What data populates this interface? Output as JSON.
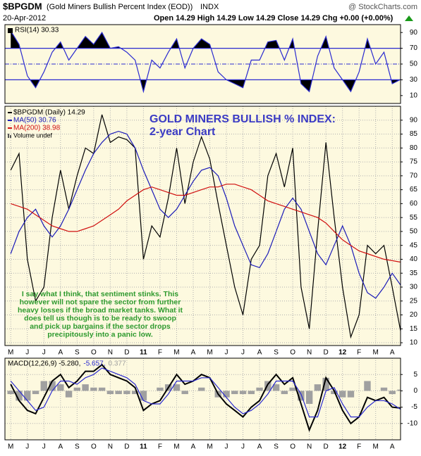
{
  "header": {
    "symbol": "$BPGDM",
    "description": "(Gold Miners Bullish Percent Index (EOD))",
    "exchange": "INDX",
    "source": "@ StockCharts.com",
    "date": "20-Apr-2012",
    "quote": "Open 14.29  High 14.29  Low 14.29  Close 14.29  Chg +0.00 (+0.00%)"
  },
  "chart_data": [
    {
      "type": "line",
      "xlim": [
        -0.35,
        23.5
      ],
      "ylim": [
        0,
        100
      ],
      "yticks": [
        10,
        30,
        50,
        70,
        90
      ],
      "grid": false,
      "thresholds": [
        30,
        70
      ],
      "midline": 50,
      "fill_color": "#000000",
      "x": [
        0,
        0.5,
        1,
        1.5,
        2,
        2.5,
        3,
        3.5,
        4,
        4.5,
        5,
        5.5,
        6,
        6.5,
        7,
        7.5,
        8,
        8.5,
        9,
        9.5,
        10,
        10.5,
        11,
        11.5,
        12,
        12.5,
        13,
        13.5,
        14,
        14.5,
        15,
        15.5,
        16,
        16.5,
        17,
        17.5,
        18,
        18.5,
        19,
        19.5,
        20,
        20.5,
        21,
        21.5,
        22,
        22.5,
        23,
        23.5
      ],
      "series": [
        {
          "name": "RSI(14) 30.33",
          "color": "#2a2ad0",
          "kind": "line",
          "values": [
            92,
            75,
            35,
            20,
            40,
            65,
            78,
            55,
            70,
            85,
            75,
            90,
            70,
            72,
            65,
            55,
            15,
            55,
            45,
            65,
            82,
            45,
            70,
            82,
            75,
            40,
            30,
            25,
            20,
            55,
            55,
            78,
            80,
            55,
            82,
            25,
            15,
            60,
            85,
            45,
            30,
            15,
            40,
            82,
            50,
            65,
            25,
            30.33
          ]
        }
      ]
    },
    {
      "type": "line",
      "xlim": [
        -0.35,
        23.5
      ],
      "ylim": [
        9,
        95
      ],
      "yticks": [
        10,
        15,
        20,
        25,
        30,
        35,
        40,
        45,
        50,
        55,
        60,
        65,
        70,
        75,
        80,
        85,
        90
      ],
      "grid": true,
      "x": [
        0,
        0.5,
        1,
        1.5,
        2,
        2.5,
        3,
        3.5,
        4,
        4.5,
        5,
        5.5,
        6,
        6.5,
        7,
        7.5,
        8,
        8.5,
        9,
        9.5,
        10,
        10.5,
        11,
        11.5,
        12,
        12.5,
        13,
        13.5,
        14,
        14.5,
        15,
        15.5,
        16,
        16.5,
        17,
        17.5,
        18,
        18.5,
        19,
        19.5,
        20,
        20.5,
        21,
        21.5,
        22,
        22.5,
        23,
        23.5
      ],
      "xticks": [
        {
          "value": 0,
          "label": "M"
        },
        {
          "value": 1,
          "label": "J"
        },
        {
          "value": 2,
          "label": "J"
        },
        {
          "value": 3,
          "label": "A"
        },
        {
          "value": 4,
          "label": "S"
        },
        {
          "value": 5,
          "label": "O"
        },
        {
          "value": 6,
          "label": "N"
        },
        {
          "value": 7,
          "label": "D"
        },
        {
          "value": 8,
          "label": "11"
        },
        {
          "value": 9,
          "label": "F"
        },
        {
          "value": 10,
          "label": "M"
        },
        {
          "value": 11,
          "label": "A"
        },
        {
          "value": 12,
          "label": "M"
        },
        {
          "value": 13,
          "label": "J"
        },
        {
          "value": 14,
          "label": "J"
        },
        {
          "value": 15,
          "label": "A"
        },
        {
          "value": 16,
          "label": "S"
        },
        {
          "value": 17,
          "label": "O"
        },
        {
          "value": 18,
          "label": "N"
        },
        {
          "value": 19,
          "label": "D"
        },
        {
          "value": 20,
          "label": "12"
        },
        {
          "value": 21,
          "label": "F"
        },
        {
          "value": 22,
          "label": "M"
        },
        {
          "value": 23,
          "label": "A"
        }
      ],
      "series": [
        {
          "name": "$BPGDM (Daily) 14.29",
          "color": "#000000",
          "kind": "line",
          "values": [
            72,
            78,
            40,
            25,
            30,
            55,
            72,
            58,
            70,
            80,
            78,
            92,
            82,
            84,
            83,
            80,
            40,
            52,
            48,
            62,
            80,
            60,
            75,
            84,
            76,
            60,
            45,
            30,
            20,
            40,
            45,
            70,
            78,
            66,
            80,
            30,
            15,
            50,
            82,
            55,
            30,
            12,
            20,
            45,
            42,
            45,
            30,
            14.29
          ]
        },
        {
          "name": "MA(50) 30.76",
          "color": "#1a1ab8",
          "kind": "line",
          "values": [
            42,
            50,
            55,
            58,
            52,
            48,
            52,
            58,
            65,
            72,
            78,
            82,
            85,
            86,
            85,
            80,
            72,
            65,
            58,
            55,
            58,
            63,
            68,
            72,
            73,
            70,
            62,
            52,
            45,
            38,
            37,
            42,
            50,
            58,
            62,
            58,
            50,
            42,
            38,
            45,
            52,
            45,
            35,
            28,
            26,
            30,
            35,
            30.76
          ]
        },
        {
          "name": "MA(200) 38.98",
          "color": "#d01010",
          "kind": "line",
          "values": [
            60,
            59,
            58,
            56,
            54,
            52,
            51,
            50,
            50,
            51,
            52,
            54,
            56,
            58,
            61,
            63,
            65,
            66,
            65,
            64,
            63,
            63,
            64,
            65,
            66,
            66,
            67,
            67,
            66,
            65,
            63,
            61,
            60,
            59,
            58,
            57,
            56,
            55,
            53,
            50,
            47,
            45,
            43,
            42,
            41,
            40,
            39.5,
            38.98
          ]
        }
      ],
      "legend_extra": "Volume undef",
      "annotations": {
        "title": [
          "GOLD MINERS BULLISH % INDEX:",
          "2-year Chart"
        ],
        "comment": [
          "I say what I think, that sentiment stinks. This",
          "however will not spare the sector from further",
          "heavy losses if the broad market tanks. What it",
          "does tell us though is to be ready to swoop",
          "and pick up bargains if the sector drops",
          "precipitously into a panic low."
        ]
      }
    },
    {
      "type": "line",
      "xlim": [
        -0.35,
        23.5
      ],
      "ylim": [
        -15,
        10
      ],
      "yticks": [
        -10,
        -5,
        0,
        5
      ],
      "grid": true,
      "x": [
        0,
        0.5,
        1,
        1.5,
        2,
        2.5,
        3,
        3.5,
        4,
        4.5,
        5,
        5.5,
        6,
        6.5,
        7,
        7.5,
        8,
        8.5,
        9,
        9.5,
        10,
        10.5,
        11,
        11.5,
        12,
        12.5,
        13,
        13.5,
        14,
        14.5,
        15,
        15.5,
        16,
        16.5,
        17,
        17.5,
        18,
        18.5,
        19,
        19.5,
        20,
        20.5,
        21,
        21.5,
        22,
        22.5,
        23,
        23.5
      ],
      "xticks": [
        {
          "value": 0,
          "label": "M"
        },
        {
          "value": 1,
          "label": "J"
        },
        {
          "value": 2,
          "label": "J"
        },
        {
          "value": 3,
          "label": "A"
        },
        {
          "value": 4,
          "label": "S"
        },
        {
          "value": 5,
          "label": "O"
        },
        {
          "value": 6,
          "label": "N"
        },
        {
          "value": 7,
          "label": "D"
        },
        {
          "value": 8,
          "label": "11"
        },
        {
          "value": 9,
          "label": "F"
        },
        {
          "value": 10,
          "label": "M"
        },
        {
          "value": 11,
          "label": "A"
        },
        {
          "value": 12,
          "label": "M"
        },
        {
          "value": 13,
          "label": "J"
        },
        {
          "value": 14,
          "label": "J"
        },
        {
          "value": 15,
          "label": "A"
        },
        {
          "value": 16,
          "label": "S"
        },
        {
          "value": 17,
          "label": "O"
        },
        {
          "value": 18,
          "label": "N"
        },
        {
          "value": 19,
          "label": "D"
        },
        {
          "value": 20,
          "label": "12"
        },
        {
          "value": 21,
          "label": "F"
        },
        {
          "value": 22,
          "label": "M"
        },
        {
          "value": 23,
          "label": "A"
        }
      ],
      "series": [
        {
          "name": "0.377",
          "color": "#a0a0a0",
          "kind": "bar",
          "values": [
            -1,
            -3,
            -3,
            -1,
            3,
            3,
            2,
            -2,
            1,
            2,
            1,
            1,
            -1,
            -1,
            -1,
            -1,
            -3,
            0,
            1,
            2,
            2,
            -1,
            0,
            1,
            0,
            -2,
            -2,
            -1,
            -1,
            -1,
            1,
            3,
            2,
            -1,
            1,
            -3,
            -4,
            2,
            4,
            -1,
            -2,
            -2,
            0,
            3,
            0,
            1,
            -1,
            0.377
          ]
        },
        {
          "name": "MACD(12,26,9) -5.280,",
          "color": "#000000",
          "kind": "line",
          "width": 2,
          "values": [
            2,
            -3,
            -6,
            -7,
            -2,
            3,
            5,
            1,
            3,
            6,
            6,
            8,
            5,
            4,
            3,
            1,
            -6,
            -4,
            -3,
            1,
            5,
            2,
            3,
            5,
            4,
            -1,
            -4,
            -6,
            -8,
            -5,
            -3,
            2,
            5,
            2,
            4,
            -4,
            -12,
            -6,
            4,
            0,
            -6,
            -10,
            -8,
            -2,
            -3,
            -2,
            -5,
            -5.28
          ]
        },
        {
          "name": "-5.657,",
          "color": "#2a2ad0",
          "kind": "line",
          "values": [
            3,
            0,
            -3,
            -6,
            -5,
            0,
            3,
            3,
            2,
            4,
            5,
            7,
            6,
            5,
            4,
            2,
            -3,
            -4,
            -4,
            -1,
            3,
            3,
            3,
            4,
            4,
            1,
            -2,
            -5,
            -7,
            -6,
            -4,
            -1,
            3,
            3,
            3,
            -1,
            -8,
            -8,
            0,
            1,
            -4,
            -8,
            -8,
            -5,
            -3,
            -3,
            -4,
            -5.657
          ]
        }
      ],
      "legend_order": [
        1,
        2,
        0
      ]
    }
  ]
}
